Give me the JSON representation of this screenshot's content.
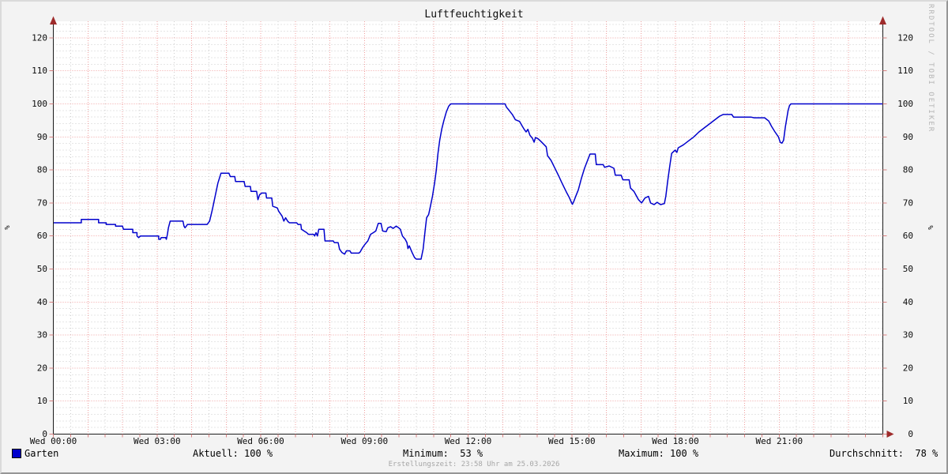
{
  "header": {
    "title": "Luftfeuchtigkeit"
  },
  "watermark": "RRDTOOL / TOBI OETIKER",
  "footer": {
    "generated": "Erstellungszeit: 23:58 Uhr am 25.03.2026"
  },
  "legend": {
    "label": "Garten",
    "swatch_color": "#0000cc"
  },
  "stats": {
    "aktuell": "Aktuell: 100 %",
    "minimum": "Minimum:  53 %",
    "maximum": "Maximum: 100 %",
    "durchschnitt": "Durchschnitt:  78 %"
  },
  "chart_data": {
    "type": "line",
    "title": "Luftfeuchtigkeit",
    "ylabel_left": "%",
    "ylabel_right": "%",
    "ylim": [
      0,
      125
    ],
    "x_range_hours": [
      0,
      24
    ],
    "grid": {
      "minor_step_y": 2,
      "major_step_y": 10,
      "minor_step_x_hours": 0.5,
      "major_step_x_hours": 1
    },
    "y_ticks": [
      0,
      10,
      20,
      30,
      40,
      50,
      60,
      70,
      80,
      90,
      100,
      110,
      120
    ],
    "x_ticks": [
      {
        "h": 0,
        "label": "Wed 00:00"
      },
      {
        "h": 3,
        "label": "Wed 03:00"
      },
      {
        "h": 6,
        "label": "Wed 06:00"
      },
      {
        "h": 9,
        "label": "Wed 09:00"
      },
      {
        "h": 12,
        "label": "Wed 12:00"
      },
      {
        "h": 15,
        "label": "Wed 15:00"
      },
      {
        "h": 18,
        "label": "Wed 18:00"
      },
      {
        "h": 21,
        "label": "Wed 21:00"
      }
    ],
    "colors": {
      "line": "#0000cc",
      "grid_minor": "#cdcdcd",
      "grid_major": "#f0a0a0",
      "axis": "#1c1c1c",
      "arrow": "#9e2b2b",
      "tick": "#d98080",
      "plot_bg": "#ffffff",
      "text": "#0c0c0c"
    },
    "summary": {
      "current": 100,
      "minimum": 53,
      "maximum": 100,
      "average": 78
    },
    "series": [
      {
        "name": "Garten",
        "color": "#0000cc",
        "points": [
          [
            0,
            64
          ],
          [
            0.81,
            64
          ],
          [
            0.81,
            65
          ],
          [
            1.31,
            65
          ],
          [
            1.31,
            64
          ],
          [
            1.53,
            64
          ],
          [
            1.53,
            63.5
          ],
          [
            1.8,
            63.5
          ],
          [
            1.8,
            63
          ],
          [
            2,
            63
          ],
          [
            2.03,
            62
          ],
          [
            2.3,
            62
          ],
          [
            2.3,
            61
          ],
          [
            2.42,
            61
          ],
          [
            2.42,
            60
          ],
          [
            2.47,
            59.5
          ],
          [
            2.52,
            60
          ],
          [
            3.05,
            60
          ],
          [
            3.05,
            59
          ],
          [
            3.1,
            59
          ],
          [
            3.12,
            59.5
          ],
          [
            3.25,
            59.5
          ],
          [
            3.27,
            59
          ],
          [
            3.3,
            60.5
          ],
          [
            3.33,
            62.5
          ],
          [
            3.38,
            64.5
          ],
          [
            3.75,
            64.5
          ],
          [
            3.78,
            63
          ],
          [
            3.81,
            62.5
          ],
          [
            3.85,
            63
          ],
          [
            3.88,
            63.5
          ],
          [
            4.45,
            63.5
          ],
          [
            4.52,
            64.5
          ],
          [
            4.6,
            68
          ],
          [
            4.68,
            72
          ],
          [
            4.76,
            76
          ],
          [
            4.85,
            79
          ],
          [
            5.08,
            79
          ],
          [
            5.12,
            78
          ],
          [
            5.25,
            78
          ],
          [
            5.27,
            76.5
          ],
          [
            5.52,
            76.5
          ],
          [
            5.55,
            75
          ],
          [
            5.7,
            75
          ],
          [
            5.72,
            73.5
          ],
          [
            5.88,
            73.5
          ],
          [
            5.92,
            71
          ],
          [
            5.97,
            72.5
          ],
          [
            6.03,
            73
          ],
          [
            6.15,
            73
          ],
          [
            6.17,
            71.5
          ],
          [
            6.32,
            71.5
          ],
          [
            6.35,
            69
          ],
          [
            6.48,
            68.5
          ],
          [
            6.52,
            67.5
          ],
          [
            6.62,
            66
          ],
          [
            6.67,
            64.5
          ],
          [
            6.72,
            65.5
          ],
          [
            6.78,
            64.5
          ],
          [
            6.83,
            64
          ],
          [
            7.04,
            64
          ],
          [
            7.08,
            63.5
          ],
          [
            7.16,
            63.5
          ],
          [
            7.18,
            62
          ],
          [
            7.33,
            61
          ],
          [
            7.38,
            60.5
          ],
          [
            7.53,
            60.5
          ],
          [
            7.56,
            60
          ],
          [
            7.6,
            61
          ],
          [
            7.64,
            60
          ],
          [
            7.68,
            62
          ],
          [
            7.83,
            62
          ],
          [
            7.86,
            58.5
          ],
          [
            8.1,
            58.5
          ],
          [
            8.13,
            58
          ],
          [
            8.24,
            58
          ],
          [
            8.28,
            56
          ],
          [
            8.35,
            55
          ],
          [
            8.43,
            54.5
          ],
          [
            8.48,
            55.5
          ],
          [
            8.58,
            55.5
          ],
          [
            8.62,
            54.8
          ],
          [
            8.84,
            54.8
          ],
          [
            8.88,
            55.2
          ],
          [
            8.95,
            56.5
          ],
          [
            9.02,
            57.5
          ],
          [
            9.1,
            58.5
          ],
          [
            9.18,
            60.5
          ],
          [
            9.26,
            61
          ],
          [
            9.33,
            61.5
          ],
          [
            9.4,
            63.8
          ],
          [
            9.48,
            63.8
          ],
          [
            9.53,
            61.5
          ],
          [
            9.63,
            61.3
          ],
          [
            9.68,
            62.5
          ],
          [
            9.76,
            62.8
          ],
          [
            9.83,
            62.3
          ],
          [
            9.92,
            63
          ],
          [
            9.99,
            62.5
          ],
          [
            10.04,
            62
          ],
          [
            10.1,
            60
          ],
          [
            10.18,
            59
          ],
          [
            10.23,
            58
          ],
          [
            10.26,
            56.2
          ],
          [
            10.3,
            57
          ],
          [
            10.38,
            55
          ],
          [
            10.45,
            53.5
          ],
          [
            10.5,
            53
          ],
          [
            10.64,
            53
          ],
          [
            10.7,
            56
          ],
          [
            10.76,
            62
          ],
          [
            10.8,
            65.5
          ],
          [
            10.86,
            66.5
          ],
          [
            10.9,
            68.5
          ],
          [
            10.97,
            72
          ],
          [
            11.03,
            76
          ],
          [
            11.08,
            80
          ],
          [
            11.13,
            85
          ],
          [
            11.18,
            89
          ],
          [
            11.24,
            92.5
          ],
          [
            11.3,
            95
          ],
          [
            11.37,
            97.5
          ],
          [
            11.44,
            99.3
          ],
          [
            11.5,
            100
          ],
          [
            13.07,
            100
          ],
          [
            13.11,
            99
          ],
          [
            13.19,
            98
          ],
          [
            13.28,
            96.8
          ],
          [
            13.37,
            95.2
          ],
          [
            13.49,
            94.7
          ],
          [
            13.57,
            93.2
          ],
          [
            13.63,
            92.2
          ],
          [
            13.68,
            91.5
          ],
          [
            13.73,
            92.3
          ],
          [
            13.79,
            90.5
          ],
          [
            13.86,
            89.6
          ],
          [
            13.91,
            88.4
          ],
          [
            13.95,
            89.8
          ],
          [
            14.03,
            89.4
          ],
          [
            14.1,
            88.7
          ],
          [
            14.26,
            87
          ],
          [
            14.3,
            84.3
          ],
          [
            14.4,
            82.9
          ],
          [
            14.48,
            81.2
          ],
          [
            14.56,
            79.5
          ],
          [
            14.63,
            78
          ],
          [
            14.7,
            76.4
          ],
          [
            14.78,
            74.7
          ],
          [
            14.86,
            73
          ],
          [
            14.93,
            71.6
          ],
          [
            14.99,
            70.2
          ],
          [
            15.02,
            69.6
          ],
          [
            15.06,
            70.5
          ],
          [
            15.1,
            71.6
          ],
          [
            15.19,
            74
          ],
          [
            15.28,
            77.5
          ],
          [
            15.37,
            80.5
          ],
          [
            15.46,
            83
          ],
          [
            15.53,
            84.8
          ],
          [
            15.68,
            84.8
          ],
          [
            15.71,
            81.6
          ],
          [
            15.91,
            81.6
          ],
          [
            15.95,
            80.8
          ],
          [
            16.08,
            81.2
          ],
          [
            16.22,
            80.5
          ],
          [
            16.26,
            78.4
          ],
          [
            16.43,
            78.4
          ],
          [
            16.48,
            77
          ],
          [
            16.66,
            77
          ],
          [
            16.7,
            74.5
          ],
          [
            16.8,
            73.5
          ],
          [
            16.85,
            72.5
          ],
          [
            16.93,
            71
          ],
          [
            17.02,
            70
          ],
          [
            17.12,
            71.5
          ],
          [
            17.22,
            72
          ],
          [
            17.28,
            70
          ],
          [
            17.38,
            69.5
          ],
          [
            17.47,
            70.2
          ],
          [
            17.57,
            69.5
          ],
          [
            17.68,
            69.8
          ],
          [
            17.72,
            72
          ],
          [
            17.78,
            77
          ],
          [
            17.84,
            81.5
          ],
          [
            17.89,
            85
          ],
          [
            17.94,
            85.5
          ],
          [
            17.99,
            86
          ],
          [
            18.04,
            85.3
          ],
          [
            18.08,
            86.7
          ],
          [
            18.23,
            87.6
          ],
          [
            18.38,
            88.8
          ],
          [
            18.53,
            90
          ],
          [
            18.68,
            91.5
          ],
          [
            18.83,
            92.7
          ],
          [
            18.98,
            93.9
          ],
          [
            19.13,
            95.1
          ],
          [
            19.28,
            96.3
          ],
          [
            19.38,
            96.8
          ],
          [
            19.63,
            96.8
          ],
          [
            19.68,
            96
          ],
          [
            20.18,
            96
          ],
          [
            20.28,
            95.8
          ],
          [
            20.58,
            95.8
          ],
          [
            20.7,
            94.8
          ],
          [
            20.78,
            93.2
          ],
          [
            20.88,
            91.5
          ],
          [
            20.98,
            90
          ],
          [
            21.03,
            88.4
          ],
          [
            21.08,
            88.1
          ],
          [
            21.13,
            89
          ],
          [
            21.18,
            93
          ],
          [
            21.26,
            98
          ],
          [
            21.3,
            99.5
          ],
          [
            21.34,
            100
          ],
          [
            24,
            100
          ]
        ]
      }
    ]
  }
}
